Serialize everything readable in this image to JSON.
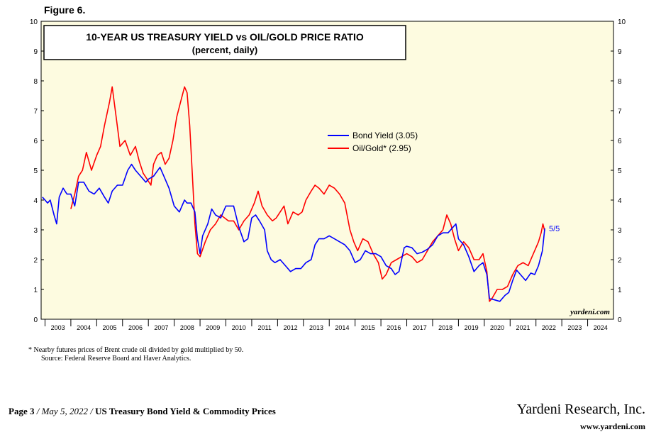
{
  "figure_label": "Figure 6.",
  "chart_data": {
    "type": "line",
    "title": "10-YEAR US TREASURY YIELD vs OIL/GOLD PRICE RATIO",
    "subtitle": "(percent, daily)",
    "x_range": [
      2002.85,
      2025.0
    ],
    "ylim": [
      0,
      10
    ],
    "yticks": [
      "0",
      "1",
      "2",
      "3",
      "4",
      "5",
      "6",
      "7",
      "8",
      "9",
      "10"
    ],
    "xtick_labels": [
      "2003",
      "2004",
      "2005",
      "2006",
      "2007",
      "2008",
      "2009",
      "2010",
      "2011",
      "2012",
      "2013",
      "2014",
      "2015",
      "2016",
      "2017",
      "2018",
      "2019",
      "2020",
      "2021",
      "2022",
      "2023",
      "2024"
    ],
    "legend_position": "center-right",
    "end_annotation": "5/5",
    "watermark": "yardeni.com",
    "colors": {
      "background": "#fdfbe0",
      "bond": "#0000ff",
      "oilgold": "#ff0000"
    },
    "series": [
      {
        "name": "Bond Yield (3.05)",
        "color": "#0000ff",
        "points": [
          [
            2002.9,
            4.1
          ],
          [
            2003.1,
            3.9
          ],
          [
            2003.2,
            4.0
          ],
          [
            2003.35,
            3.5
          ],
          [
            2003.45,
            3.2
          ],
          [
            2003.55,
            4.1
          ],
          [
            2003.7,
            4.4
          ],
          [
            2003.85,
            4.2
          ],
          [
            2004.0,
            4.2
          ],
          [
            2004.15,
            3.8
          ],
          [
            2004.3,
            4.6
          ],
          [
            2004.5,
            4.6
          ],
          [
            2004.7,
            4.3
          ],
          [
            2004.9,
            4.2
          ],
          [
            2005.1,
            4.4
          ],
          [
            2005.3,
            4.1
          ],
          [
            2005.45,
            3.9
          ],
          [
            2005.6,
            4.3
          ],
          [
            2005.8,
            4.5
          ],
          [
            2006.0,
            4.5
          ],
          [
            2006.2,
            5.0
          ],
          [
            2006.35,
            5.2
          ],
          [
            2006.5,
            5.0
          ],
          [
            2006.7,
            4.8
          ],
          [
            2006.9,
            4.6
          ],
          [
            2007.0,
            4.7
          ],
          [
            2007.2,
            4.8
          ],
          [
            2007.45,
            5.1
          ],
          [
            2007.6,
            4.8
          ],
          [
            2007.8,
            4.4
          ],
          [
            2008.0,
            3.8
          ],
          [
            2008.2,
            3.6
          ],
          [
            2008.4,
            4.0
          ],
          [
            2008.5,
            3.9
          ],
          [
            2008.65,
            3.9
          ],
          [
            2008.8,
            3.6
          ],
          [
            2008.9,
            2.7
          ],
          [
            2009.0,
            2.2
          ],
          [
            2009.1,
            2.8
          ],
          [
            2009.3,
            3.2
          ],
          [
            2009.45,
            3.7
          ],
          [
            2009.6,
            3.5
          ],
          [
            2009.8,
            3.4
          ],
          [
            2010.0,
            3.8
          ],
          [
            2010.3,
            3.8
          ],
          [
            2010.5,
            3.1
          ],
          [
            2010.7,
            2.6
          ],
          [
            2010.85,
            2.7
          ],
          [
            2011.0,
            3.4
          ],
          [
            2011.15,
            3.5
          ],
          [
            2011.3,
            3.3
          ],
          [
            2011.5,
            3.0
          ],
          [
            2011.6,
            2.3
          ],
          [
            2011.75,
            2.0
          ],
          [
            2011.9,
            1.9
          ],
          [
            2012.1,
            2.0
          ],
          [
            2012.3,
            1.8
          ],
          [
            2012.5,
            1.6
          ],
          [
            2012.7,
            1.7
          ],
          [
            2012.9,
            1.7
          ],
          [
            2013.1,
            1.9
          ],
          [
            2013.3,
            2.0
          ],
          [
            2013.45,
            2.5
          ],
          [
            2013.6,
            2.7
          ],
          [
            2013.8,
            2.7
          ],
          [
            2014.0,
            2.8
          ],
          [
            2014.2,
            2.7
          ],
          [
            2014.4,
            2.6
          ],
          [
            2014.6,
            2.5
          ],
          [
            2014.8,
            2.3
          ],
          [
            2015.0,
            1.9
          ],
          [
            2015.2,
            2.0
          ],
          [
            2015.4,
            2.3
          ],
          [
            2015.6,
            2.2
          ],
          [
            2015.8,
            2.2
          ],
          [
            2016.0,
            2.1
          ],
          [
            2016.2,
            1.8
          ],
          [
            2016.4,
            1.7
          ],
          [
            2016.55,
            1.5
          ],
          [
            2016.7,
            1.6
          ],
          [
            2016.9,
            2.4
          ],
          [
            2017.0,
            2.45
          ],
          [
            2017.2,
            2.4
          ],
          [
            2017.4,
            2.2
          ],
          [
            2017.6,
            2.25
          ],
          [
            2017.8,
            2.35
          ],
          [
            2018.0,
            2.5
          ],
          [
            2018.2,
            2.8
          ],
          [
            2018.4,
            2.9
          ],
          [
            2018.6,
            2.9
          ],
          [
            2018.8,
            3.1
          ],
          [
            2018.9,
            3.2
          ],
          [
            2019.0,
            2.7
          ],
          [
            2019.2,
            2.5
          ],
          [
            2019.4,
            2.1
          ],
          [
            2019.6,
            1.6
          ],
          [
            2019.8,
            1.8
          ],
          [
            2019.95,
            1.9
          ],
          [
            2020.1,
            1.5
          ],
          [
            2020.2,
            0.7
          ],
          [
            2020.4,
            0.65
          ],
          [
            2020.6,
            0.6
          ],
          [
            2020.8,
            0.8
          ],
          [
            2020.95,
            0.9
          ],
          [
            2021.1,
            1.3
          ],
          [
            2021.25,
            1.65
          ],
          [
            2021.4,
            1.5
          ],
          [
            2021.6,
            1.3
          ],
          [
            2021.8,
            1.55
          ],
          [
            2021.95,
            1.5
          ],
          [
            2022.1,
            1.8
          ],
          [
            2022.25,
            2.3
          ],
          [
            2022.34,
            3.05
          ]
        ]
      },
      {
        "name": "Oil/Gold* (2.95)",
        "color": "#ff0000",
        "points": [
          [
            2004.0,
            3.7
          ],
          [
            2004.15,
            4.2
          ],
          [
            2004.3,
            4.8
          ],
          [
            2004.45,
            5.0
          ],
          [
            2004.6,
            5.6
          ],
          [
            2004.8,
            5.0
          ],
          [
            2005.0,
            5.5
          ],
          [
            2005.15,
            5.8
          ],
          [
            2005.3,
            6.5
          ],
          [
            2005.5,
            7.3
          ],
          [
            2005.6,
            7.8
          ],
          [
            2005.75,
            6.8
          ],
          [
            2005.9,
            5.8
          ],
          [
            2006.1,
            6.0
          ],
          [
            2006.3,
            5.5
          ],
          [
            2006.5,
            5.8
          ],
          [
            2006.65,
            5.3
          ],
          [
            2006.8,
            4.9
          ],
          [
            2006.95,
            4.7
          ],
          [
            2007.1,
            4.5
          ],
          [
            2007.2,
            5.2
          ],
          [
            2007.35,
            5.5
          ],
          [
            2007.5,
            5.6
          ],
          [
            2007.65,
            5.2
          ],
          [
            2007.8,
            5.4
          ],
          [
            2007.95,
            6.0
          ],
          [
            2008.1,
            6.8
          ],
          [
            2008.25,
            7.3
          ],
          [
            2008.4,
            7.8
          ],
          [
            2008.5,
            7.6
          ],
          [
            2008.6,
            6.5
          ],
          [
            2008.7,
            4.9
          ],
          [
            2008.8,
            3.2
          ],
          [
            2008.9,
            2.2
          ],
          [
            2009.0,
            2.1
          ],
          [
            2009.2,
            2.6
          ],
          [
            2009.4,
            3.0
          ],
          [
            2009.6,
            3.2
          ],
          [
            2009.8,
            3.5
          ],
          [
            2009.95,
            3.4
          ],
          [
            2010.1,
            3.3
          ],
          [
            2010.3,
            3.3
          ],
          [
            2010.5,
            3.0
          ],
          [
            2010.7,
            3.3
          ],
          [
            2010.9,
            3.5
          ],
          [
            2011.1,
            3.9
          ],
          [
            2011.25,
            4.3
          ],
          [
            2011.4,
            3.8
          ],
          [
            2011.6,
            3.5
          ],
          [
            2011.8,
            3.3
          ],
          [
            2011.95,
            3.4
          ],
          [
            2012.1,
            3.6
          ],
          [
            2012.25,
            3.8
          ],
          [
            2012.4,
            3.2
          ],
          [
            2012.6,
            3.6
          ],
          [
            2012.8,
            3.5
          ],
          [
            2012.95,
            3.6
          ],
          [
            2013.1,
            4.0
          ],
          [
            2013.3,
            4.3
          ],
          [
            2013.45,
            4.5
          ],
          [
            2013.6,
            4.4
          ],
          [
            2013.8,
            4.2
          ],
          [
            2014.0,
            4.5
          ],
          [
            2014.2,
            4.4
          ],
          [
            2014.4,
            4.2
          ],
          [
            2014.6,
            3.9
          ],
          [
            2014.8,
            3.0
          ],
          [
            2014.95,
            2.6
          ],
          [
            2015.1,
            2.3
          ],
          [
            2015.3,
            2.7
          ],
          [
            2015.5,
            2.6
          ],
          [
            2015.7,
            2.2
          ],
          [
            2015.9,
            1.9
          ],
          [
            2016.05,
            1.35
          ],
          [
            2016.2,
            1.5
          ],
          [
            2016.4,
            1.9
          ],
          [
            2016.6,
            2.0
          ],
          [
            2016.8,
            2.1
          ],
          [
            2017.0,
            2.2
          ],
          [
            2017.2,
            2.1
          ],
          [
            2017.4,
            1.9
          ],
          [
            2017.6,
            2.0
          ],
          [
            2017.8,
            2.3
          ],
          [
            2018.0,
            2.6
          ],
          [
            2018.2,
            2.8
          ],
          [
            2018.4,
            3.0
          ],
          [
            2018.55,
            3.5
          ],
          [
            2018.7,
            3.2
          ],
          [
            2018.85,
            2.7
          ],
          [
            2019.0,
            2.3
          ],
          [
            2019.2,
            2.6
          ],
          [
            2019.4,
            2.4
          ],
          [
            2019.6,
            2.0
          ],
          [
            2019.8,
            2.0
          ],
          [
            2019.95,
            2.2
          ],
          [
            2020.1,
            1.6
          ],
          [
            2020.2,
            0.6
          ],
          [
            2020.3,
            0.7
          ],
          [
            2020.5,
            1.0
          ],
          [
            2020.7,
            1.0
          ],
          [
            2020.9,
            1.1
          ],
          [
            2021.1,
            1.5
          ],
          [
            2021.3,
            1.8
          ],
          [
            2021.5,
            1.9
          ],
          [
            2021.7,
            1.8
          ],
          [
            2021.85,
            2.1
          ],
          [
            2022.0,
            2.4
          ],
          [
            2022.1,
            2.6
          ],
          [
            2022.2,
            2.9
          ],
          [
            2022.27,
            3.2
          ],
          [
            2022.34,
            2.95
          ]
        ]
      }
    ]
  },
  "footnote": "*  Nearby futures prices of Brent crude oil divided by gold multiplied by 50.",
  "source": "Source: Federal Reserve Board and Haver Analytics.",
  "footer": {
    "page": "Page 3",
    "sep1": " / ",
    "date": "May 5, 2022",
    "sep2": " / ",
    "report_title": " US Treasury Bond Yield & Commodity Prices",
    "company": "Yardeni Research, Inc.",
    "website": "www.yardeni.com"
  }
}
